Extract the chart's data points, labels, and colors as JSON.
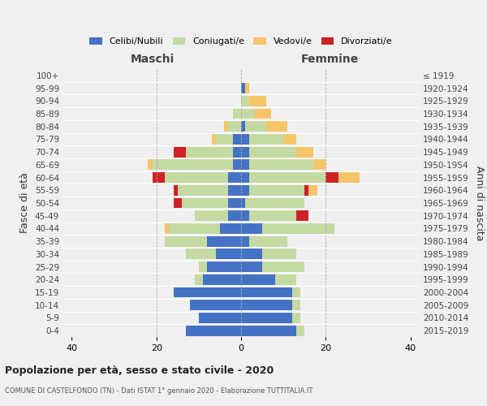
{
  "age_groups": [
    "100+",
    "95-99",
    "90-94",
    "85-89",
    "80-84",
    "75-79",
    "70-74",
    "65-69",
    "60-64",
    "55-59",
    "50-54",
    "45-49",
    "40-44",
    "35-39",
    "30-34",
    "25-29",
    "20-24",
    "15-19",
    "10-14",
    "5-9",
    "0-4"
  ],
  "birth_years": [
    "≤ 1919",
    "1920-1924",
    "1925-1929",
    "1930-1934",
    "1935-1939",
    "1940-1944",
    "1945-1949",
    "1950-1954",
    "1955-1959",
    "1960-1964",
    "1965-1969",
    "1970-1974",
    "1975-1979",
    "1980-1984",
    "1985-1989",
    "1990-1994",
    "1995-1999",
    "2000-2004",
    "2005-2009",
    "2010-2014",
    "2015-2019"
  ],
  "colors": {
    "celibe": "#4472C4",
    "coniugato": "#C5D9A2",
    "vedovo": "#F5C568",
    "divorziato": "#CC2222"
  },
  "males": {
    "celibe": [
      0,
      0,
      0,
      0,
      0,
      2,
      2,
      2,
      3,
      3,
      3,
      3,
      5,
      8,
      6,
      8,
      9,
      16,
      12,
      10,
      13
    ],
    "coniugato": [
      0,
      0,
      0,
      2,
      3,
      4,
      11,
      19,
      15,
      12,
      11,
      8,
      12,
      10,
      7,
      2,
      2,
      0,
      0,
      0,
      0
    ],
    "vedovo": [
      0,
      0,
      0,
      0,
      1,
      1,
      0,
      1,
      0,
      0,
      0,
      0,
      1,
      0,
      0,
      0,
      0,
      0,
      0,
      0,
      0
    ],
    "divorziato": [
      0,
      0,
      0,
      0,
      0,
      0,
      3,
      0,
      3,
      1,
      2,
      0,
      0,
      0,
      0,
      0,
      0,
      0,
      0,
      0,
      0
    ]
  },
  "females": {
    "nubile": [
      0,
      1,
      0,
      0,
      1,
      2,
      2,
      2,
      2,
      2,
      1,
      2,
      5,
      2,
      5,
      5,
      8,
      12,
      12,
      12,
      13
    ],
    "coniugata": [
      0,
      0,
      2,
      3,
      5,
      8,
      11,
      15,
      18,
      13,
      14,
      11,
      17,
      9,
      8,
      10,
      5,
      2,
      2,
      2,
      2
    ],
    "vedova": [
      0,
      1,
      4,
      4,
      5,
      3,
      4,
      3,
      5,
      2,
      0,
      0,
      0,
      0,
      0,
      0,
      0,
      0,
      0,
      0,
      0
    ],
    "divorziata": [
      0,
      0,
      0,
      0,
      0,
      0,
      0,
      0,
      3,
      1,
      0,
      3,
      0,
      0,
      0,
      0,
      0,
      0,
      0,
      0,
      0
    ]
  },
  "xlim": [
    -42,
    42
  ],
  "xticks": [
    -40,
    -20,
    0,
    20,
    40
  ],
  "xticklabels": [
    "40",
    "20",
    "0",
    "20",
    "40"
  ],
  "title": "Popolazione per età, sesso e stato civile - 2020",
  "subtitle": "COMUNE DI CASTELFONDO (TN) - Dati ISTAT 1° gennaio 2020 - Elaborazione TUTTITALIA.IT",
  "ylabel_left": "Fasce di età",
  "ylabel_right": "Anni di nascita",
  "label_maschi": "Maschi",
  "label_femmine": "Femmine",
  "legend_labels": [
    "Celibi/Nubili",
    "Coniugati/e",
    "Vedovi/e",
    "Divorziati/e"
  ],
  "bg_color": "#f0f0f0"
}
